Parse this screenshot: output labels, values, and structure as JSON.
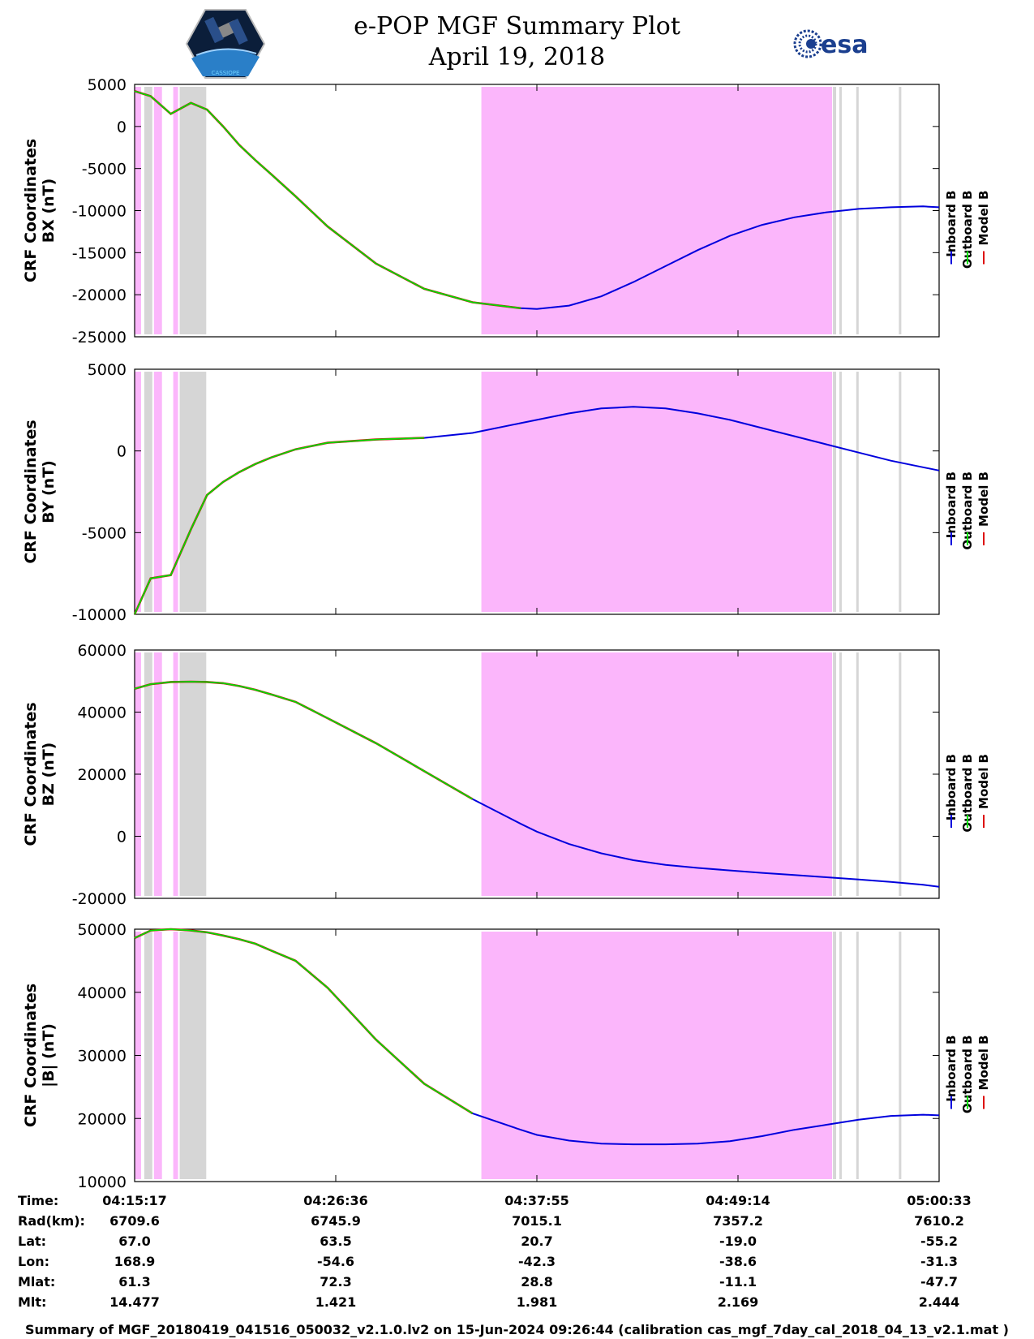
{
  "header": {
    "title": "e-POP MGF Summary Plot",
    "date": "April 19, 2018",
    "logo_left": "CASSIOPE",
    "logo_right": "esa"
  },
  "colors": {
    "inboard": "#0000dd",
    "outboard": "#00dd00",
    "model": "#dd0000",
    "shade_magenta": "#fbb6fb",
    "shade_gray": "#d6d6d6"
  },
  "legend": [
    "Inboard B",
    "Outboard B",
    "Model B"
  ],
  "chart_data": [
    {
      "type": "line",
      "ylabel_line1": "CRF Coordinates",
      "ylabel_line2": "BX (nT)",
      "ylim": [
        -25000,
        5000
      ],
      "yticks": [
        5000,
        0,
        -5000,
        -10000,
        -15000,
        -20000,
        -25000
      ],
      "ytick_labels": [
        "5000",
        "0",
        "-5000",
        "-10000",
        "-15000",
        "-20000",
        "-25000"
      ],
      "x": [
        0,
        20,
        45,
        70,
        90,
        110,
        130,
        150,
        170,
        200,
        240,
        300,
        360,
        420,
        480,
        500,
        540,
        580,
        620,
        660,
        700,
        740,
        780,
        820,
        860,
        900,
        940,
        980,
        1000
      ],
      "inboard": [
        4200,
        3600,
        1500,
        2800,
        2000,
        0,
        -2200,
        -4000,
        -5700,
        -8300,
        -11900,
        -16300,
        -19300,
        -20900,
        -21600,
        -21700,
        -21300,
        -20200,
        -18500,
        -16600,
        -14700,
        -13000,
        -11700,
        -10800,
        -10200,
        -9800,
        -9600,
        -9500,
        -9600
      ],
      "outboard_end": 480
    },
    {
      "type": "line",
      "ylabel_line1": "CRF Coordinates",
      "ylabel_line2": "BY (nT)",
      "ylim": [
        -10000,
        5000
      ],
      "yticks": [
        5000,
        0,
        -5000,
        -10000
      ],
      "ytick_labels": [
        "5000",
        "0",
        "-5000",
        "-10000"
      ],
      "x": [
        0,
        20,
        45,
        70,
        90,
        110,
        130,
        150,
        170,
        200,
        240,
        300,
        360,
        420,
        480,
        500,
        540,
        580,
        620,
        660,
        700,
        740,
        780,
        820,
        860,
        900,
        940,
        980,
        1000
      ],
      "inboard": [
        -10000,
        -7800,
        -7600,
        -4800,
        -2700,
        -1900,
        -1300,
        -800,
        -400,
        100,
        500,
        700,
        800,
        1100,
        1700,
        1900,
        2300,
        2600,
        2700,
        2600,
        2300,
        1900,
        1400,
        900,
        400,
        -100,
        -600,
        -1000,
        -1200
      ],
      "outboard_end": 400
    },
    {
      "type": "line",
      "ylabel_line1": "CRF Coordinates",
      "ylabel_line2": "BZ (nT)",
      "ylim": [
        -20000,
        60000
      ],
      "yticks": [
        60000,
        40000,
        20000,
        0,
        -20000
      ],
      "ytick_labels": [
        "60000",
        "40000",
        "20000",
        "0",
        "-20000"
      ],
      "x": [
        0,
        20,
        45,
        70,
        90,
        110,
        130,
        150,
        170,
        200,
        240,
        300,
        360,
        420,
        480,
        500,
        540,
        580,
        620,
        660,
        700,
        740,
        780,
        820,
        860,
        900,
        940,
        980,
        1000
      ],
      "inboard": [
        47500,
        49000,
        49700,
        49800,
        49700,
        49300,
        48400,
        47200,
        45700,
        43300,
        38000,
        30000,
        21000,
        12000,
        4000,
        1500,
        -2500,
        -5500,
        -7700,
        -9200,
        -10200,
        -11000,
        -11800,
        -12500,
        -13200,
        -13900,
        -14700,
        -15600,
        -16300
      ],
      "outboard_end": 430
    },
    {
      "type": "line",
      "ylabel_line1": "CRF Coordinates",
      "ylabel_line2": "|B| (nT)",
      "ylim": [
        10000,
        50000
      ],
      "yticks": [
        50000,
        40000,
        30000,
        20000,
        10000
      ],
      "ytick_labels": [
        "50000",
        "40000",
        "30000",
        "20000",
        "10000"
      ],
      "x": [
        0,
        20,
        45,
        70,
        90,
        110,
        130,
        150,
        170,
        200,
        240,
        300,
        360,
        420,
        480,
        500,
        540,
        580,
        620,
        660,
        700,
        740,
        780,
        820,
        860,
        900,
        940,
        980,
        1000
      ],
      "inboard": [
        48600,
        49800,
        50000,
        49800,
        49500,
        49000,
        48400,
        47700,
        46600,
        45000,
        40700,
        32500,
        25500,
        20800,
        18200,
        17400,
        16500,
        16000,
        15900,
        15900,
        16000,
        16400,
        17200,
        18200,
        19000,
        19800,
        20400,
        20600,
        20500
      ],
      "outboard_end": 430
    }
  ],
  "time_axis": {
    "labels": [
      "04:15:17",
      "04:26:36",
      "04:37:55",
      "04:49:14",
      "05:00:33"
    ]
  },
  "info": {
    "rows": [
      {
        "label": "Time:",
        "values": [
          "04:15:17",
          "04:26:36",
          "04:37:55",
          "04:49:14",
          "05:00:33"
        ]
      },
      {
        "label": "Rad(km):",
        "values": [
          "6709.6",
          "6745.9",
          "7015.1",
          "7357.2",
          "7610.2"
        ]
      },
      {
        "label": "Lat:",
        "values": [
          "67.0",
          "63.5",
          "20.7",
          "-19.0",
          "-55.2"
        ]
      },
      {
        "label": "Lon:",
        "values": [
          "168.9",
          "-54.6",
          "-42.3",
          "-38.6",
          "-31.3"
        ]
      },
      {
        "label": "Mlat:",
        "values": [
          "61.3",
          "72.3",
          "28.8",
          "-11.1",
          "-47.7"
        ]
      },
      {
        "label": "Mlt:",
        "values": [
          "14.477",
          "1.421",
          "1.981",
          "2.169",
          "2.444"
        ]
      }
    ]
  },
  "footer": "Summary of MGF_20180419_041516_050032_v2.1.0.lv2 on 15-Jun-2024 09:26:44 (calibration cas_mgf_7day_cal_2018_04_13_v2.1.mat )"
}
